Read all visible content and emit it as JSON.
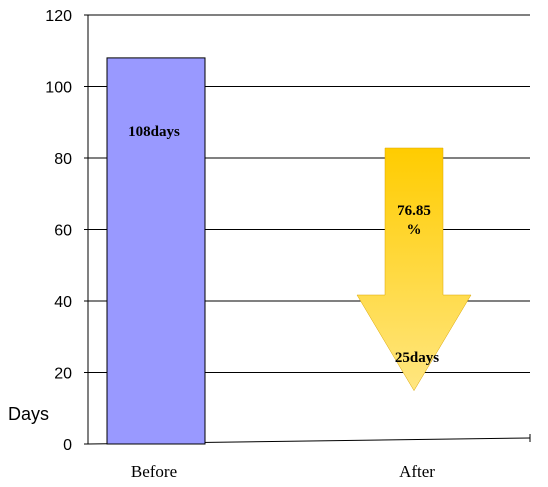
{
  "chart_data": {
    "type": "bar",
    "categories": [
      "Before",
      "After"
    ],
    "values": [
      108,
      25
    ],
    "ylabel": "Days",
    "ylim": [
      0,
      120
    ],
    "yticks": [
      0,
      20,
      40,
      60,
      80,
      100,
      120
    ],
    "grid": true,
    "data_labels": [
      "108days",
      "25days"
    ],
    "annotation": {
      "type": "down-arrow",
      "text_line1": "76.85",
      "text_line2": "%"
    },
    "colors": {
      "bar": "#9999ff",
      "arrow_top": "#ffcc00",
      "arrow_bottom": "#ffe680",
      "grid": "#000000"
    }
  }
}
